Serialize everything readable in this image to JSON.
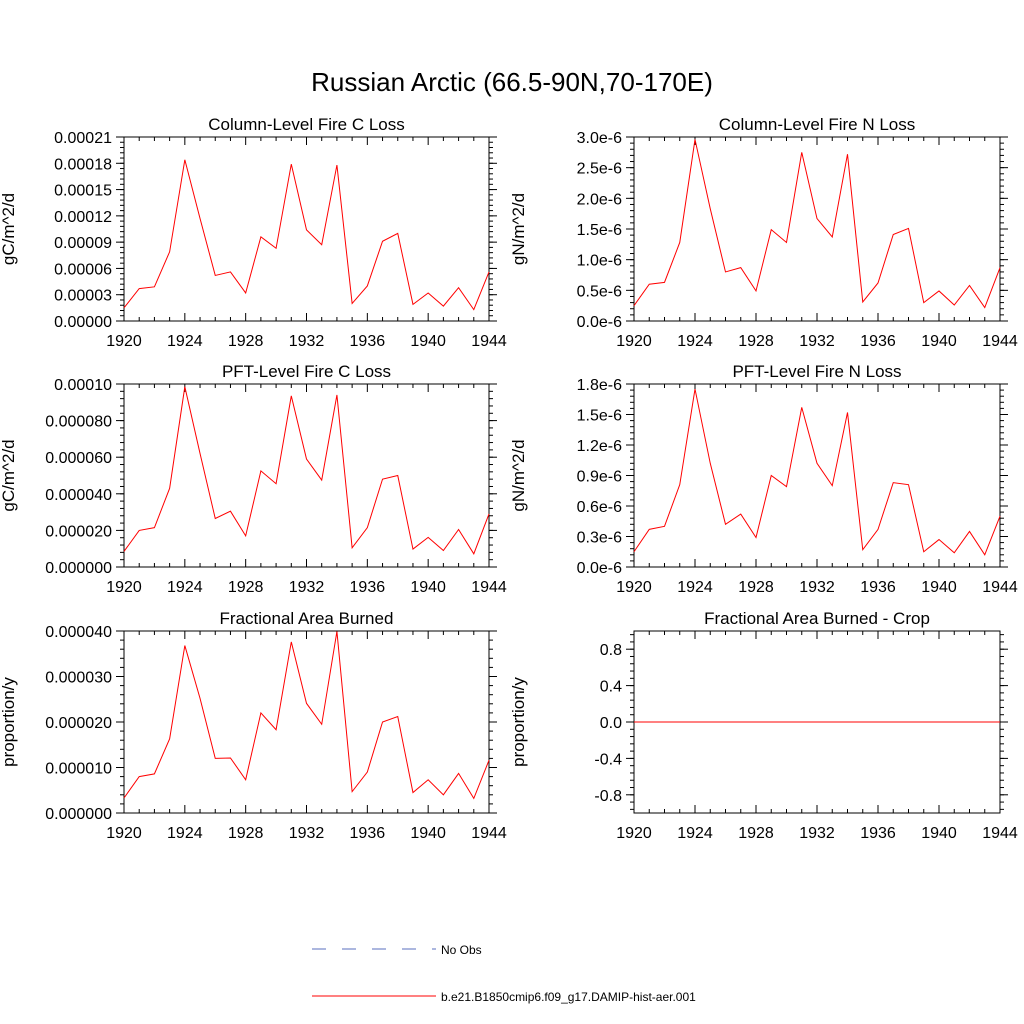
{
  "page_title": "Russian Arctic (66.5-90N,70-170E)",
  "colors": {
    "model_line": "#ff0000",
    "obs_line": "#5a6fbf",
    "axis": "#000000"
  },
  "legend": {
    "obs_label": "No Obs",
    "model_label": "b.e21.B1850cmip6.f09_g17.DAMIP-hist-aer.001"
  },
  "chart_data": [
    {
      "type": "line",
      "title": "Column-Level Fire C Loss",
      "ylabel": "gC/m^2/d",
      "xlim": [
        1920,
        1944
      ],
      "ylim": [
        0,
        0.00021
      ],
      "xticks": [
        "1920",
        "1924",
        "1928",
        "1932",
        "1936",
        "1940",
        "1944"
      ],
      "xtick_values": [
        1920,
        1924,
        1928,
        1932,
        1936,
        1940,
        1944
      ],
      "yticks": [
        "0.00000",
        "0.00003",
        "0.00006",
        "0.00009",
        "0.00012",
        "0.00015",
        "0.00018",
        "0.00021"
      ],
      "ytick_values": [
        0,
        3e-05,
        6e-05,
        9e-05,
        0.00012,
        0.00015,
        0.00018,
        0.00021
      ],
      "x": [
        1920,
        1921,
        1922,
        1923,
        1924,
        1925,
        1926,
        1927,
        1928,
        1929,
        1930,
        1931,
        1932,
        1933,
        1934,
        1935,
        1936,
        1937,
        1938,
        1939,
        1940,
        1941,
        1942,
        1943,
        1944
      ],
      "series": [
        {
          "values": [
            1.5e-05,
            3.7e-05,
            3.9e-05,
            7.9e-05,
            0.000184,
            0.000117,
            5.2e-05,
            5.6e-05,
            3.2e-05,
            9.6e-05,
            8.3e-05,
            0.000179,
            0.000104,
            8.7e-05,
            0.000178,
            2e-05,
            4e-05,
            9.1e-05,
            0.0001,
            1.9e-05,
            3.2e-05,
            1.7e-05,
            3.8e-05,
            1.3e-05,
            5.6e-05
          ]
        }
      ]
    },
    {
      "type": "line",
      "title": "Column-Level Fire N Loss",
      "ylabel": "gN/m^2/d",
      "xlim": [
        1920,
        1944
      ],
      "ylim": [
        0,
        3e-06
      ],
      "xticks": [
        "1920",
        "1924",
        "1928",
        "1932",
        "1936",
        "1940",
        "1944"
      ],
      "xtick_values": [
        1920,
        1924,
        1928,
        1932,
        1936,
        1940,
        1944
      ],
      "yticks": [
        "0.0e-6",
        "0.5e-6",
        "1.0e-6",
        "1.5e-6",
        "2.0e-6",
        "2.5e-6",
        "3.0e-6"
      ],
      "ytick_values": [
        0,
        5e-07,
        1e-06,
        1.5e-06,
        2e-06,
        2.5e-06,
        3e-06
      ],
      "x": [
        1920,
        1921,
        1922,
        1923,
        1924,
        1925,
        1926,
        1927,
        1928,
        1929,
        1930,
        1931,
        1932,
        1933,
        1934,
        1935,
        1936,
        1937,
        1938,
        1939,
        1940,
        1941,
        1942,
        1943,
        1944
      ],
      "series": [
        {
          "values": [
            2.5e-07,
            6e-07,
            6.3e-07,
            1.28e-06,
            2.96e-06,
            1.83e-06,
            8e-07,
            8.7e-07,
            4.9e-07,
            1.49e-06,
            1.28e-06,
            2.75e-06,
            1.67e-06,
            1.37e-06,
            2.72e-06,
            3.1e-07,
            6.2e-07,
            1.41e-06,
            1.51e-06,
            3e-07,
            4.9e-07,
            2.6e-07,
            5.8e-07,
            2.2e-07,
            8.7e-07
          ]
        }
      ]
    },
    {
      "type": "line",
      "title": "PFT-Level Fire C Loss",
      "ylabel": "gC/m^2/d",
      "xlim": [
        1920,
        1944
      ],
      "ylim": [
        0,
        0.0001
      ],
      "xticks": [
        "1920",
        "1924",
        "1928",
        "1932",
        "1936",
        "1940",
        "1944"
      ],
      "xtick_values": [
        1920,
        1924,
        1928,
        1932,
        1936,
        1940,
        1944
      ],
      "yticks": [
        "0.000000",
        "0.000020",
        "0.000040",
        "0.000060",
        "0.000080",
        "0.00010"
      ],
      "ytick_values": [
        0,
        2e-05,
        4e-05,
        6e-05,
        8e-05,
        0.0001
      ],
      "x": [
        1920,
        1921,
        1922,
        1923,
        1924,
        1925,
        1926,
        1927,
        1928,
        1929,
        1930,
        1931,
        1932,
        1933,
        1934,
        1935,
        1936,
        1937,
        1938,
        1939,
        1940,
        1941,
        1942,
        1943,
        1944
      ],
      "series": [
        {
          "values": [
            8.5e-06,
            2e-05,
            2.15e-05,
            4.3e-05,
            9.85e-05,
            6.2e-05,
            2.65e-05,
            3.05e-05,
            1.7e-05,
            5.25e-05,
            4.55e-05,
            9.35e-05,
            5.9e-05,
            4.75e-05,
            9.4e-05,
            1.05e-05,
            2.15e-05,
            4.8e-05,
            5e-05,
            9.8e-06,
            1.62e-05,
            9e-06,
            2.05e-05,
            7.2e-06,
            2.9e-05
          ]
        }
      ]
    },
    {
      "type": "line",
      "title": "PFT-Level Fire N Loss",
      "ylabel": "gN/m^2/d",
      "xlim": [
        1920,
        1944
      ],
      "ylim": [
        0,
        1.8e-06
      ],
      "xticks": [
        "1920",
        "1924",
        "1928",
        "1932",
        "1936",
        "1940",
        "1944"
      ],
      "xtick_values": [
        1920,
        1924,
        1928,
        1932,
        1936,
        1940,
        1944
      ],
      "yticks": [
        "0.0e-6",
        "0.3e-6",
        "0.6e-6",
        "0.9e-6",
        "1.2e-6",
        "1.5e-6",
        "1.8e-6"
      ],
      "ytick_values": [
        0,
        3e-07,
        6e-07,
        9e-07,
        1.2e-06,
        1.5e-06,
        1.8e-06
      ],
      "x": [
        1920,
        1921,
        1922,
        1923,
        1924,
        1925,
        1926,
        1927,
        1928,
        1929,
        1930,
        1931,
        1932,
        1933,
        1934,
        1935,
        1936,
        1937,
        1938,
        1939,
        1940,
        1941,
        1942,
        1943,
        1944
      ],
      "series": [
        {
          "values": [
            1.5e-07,
            3.7e-07,
            4e-07,
            8.1e-07,
            1.75e-06,
            1.02e-06,
            4.2e-07,
            5.2e-07,
            2.9e-07,
            9e-07,
            7.9e-07,
            1.57e-06,
            1.02e-06,
            8e-07,
            1.52e-06,
            1.7e-07,
            3.7e-07,
            8.3e-07,
            8.1e-07,
            1.5e-07,
            2.7e-07,
            1.4e-07,
            3.5e-07,
            1.2e-07,
            5e-07
          ]
        }
      ]
    },
    {
      "type": "line",
      "title": "Fractional Area Burned",
      "ylabel": "proportion/y",
      "xlim": [
        1920,
        1944
      ],
      "ylim": [
        0,
        4e-05
      ],
      "xticks": [
        "1920",
        "1924",
        "1928",
        "1932",
        "1936",
        "1940",
        "1944"
      ],
      "xtick_values": [
        1920,
        1924,
        1928,
        1932,
        1936,
        1940,
        1944
      ],
      "yticks": [
        "0.000000",
        "0.000010",
        "0.000020",
        "0.000030",
        "0.000040"
      ],
      "ytick_values": [
        0,
        1e-05,
        2e-05,
        3e-05,
        4e-05
      ],
      "x": [
        1920,
        1921,
        1922,
        1923,
        1924,
        1925,
        1926,
        1927,
        1928,
        1929,
        1930,
        1931,
        1932,
        1933,
        1934,
        1935,
        1936,
        1937,
        1938,
        1939,
        1940,
        1941,
        1942,
        1943,
        1944
      ],
      "series": [
        {
          "values": [
            3.3e-06,
            8e-06,
            8.6e-06,
            1.63e-05,
            3.68e-05,
            2.52e-05,
            1.2e-05,
            1.21e-05,
            7.3e-06,
            2.2e-05,
            1.83e-05,
            3.76e-05,
            2.41e-05,
            1.95e-05,
            3.99e-05,
            4.7e-06,
            9e-06,
            2e-05,
            2.12e-05,
            4.5e-06,
            7.3e-06,
            4e-06,
            8.7e-06,
            3.2e-06,
            1.16e-05
          ]
        }
      ]
    },
    {
      "type": "line",
      "title": "Fractional Area Burned - Crop",
      "ylabel": "proportion/y",
      "xlim": [
        1920,
        1944
      ],
      "ylim": [
        -1,
        1
      ],
      "xticks": [
        "1920",
        "1924",
        "1928",
        "1932",
        "1936",
        "1940",
        "1944"
      ],
      "xtick_values": [
        1920,
        1924,
        1928,
        1932,
        1936,
        1940,
        1944
      ],
      "yticks": [
        "-0.8",
        "-0.4",
        "0.0",
        "0.4",
        "0.8"
      ],
      "ytick_values": [
        -0.8,
        -0.4,
        0,
        0.4,
        0.8
      ],
      "x": [
        1920,
        1921,
        1922,
        1923,
        1924,
        1925,
        1926,
        1927,
        1928,
        1929,
        1930,
        1931,
        1932,
        1933,
        1934,
        1935,
        1936,
        1937,
        1938,
        1939,
        1940,
        1941,
        1942,
        1943,
        1944
      ],
      "series": [
        {
          "values": [
            0,
            0,
            0,
            0,
            0,
            0,
            0,
            0,
            0,
            0,
            0,
            0,
            0,
            0,
            0,
            0,
            0,
            0,
            0,
            0,
            0,
            0,
            0,
            0,
            0
          ]
        }
      ]
    }
  ]
}
